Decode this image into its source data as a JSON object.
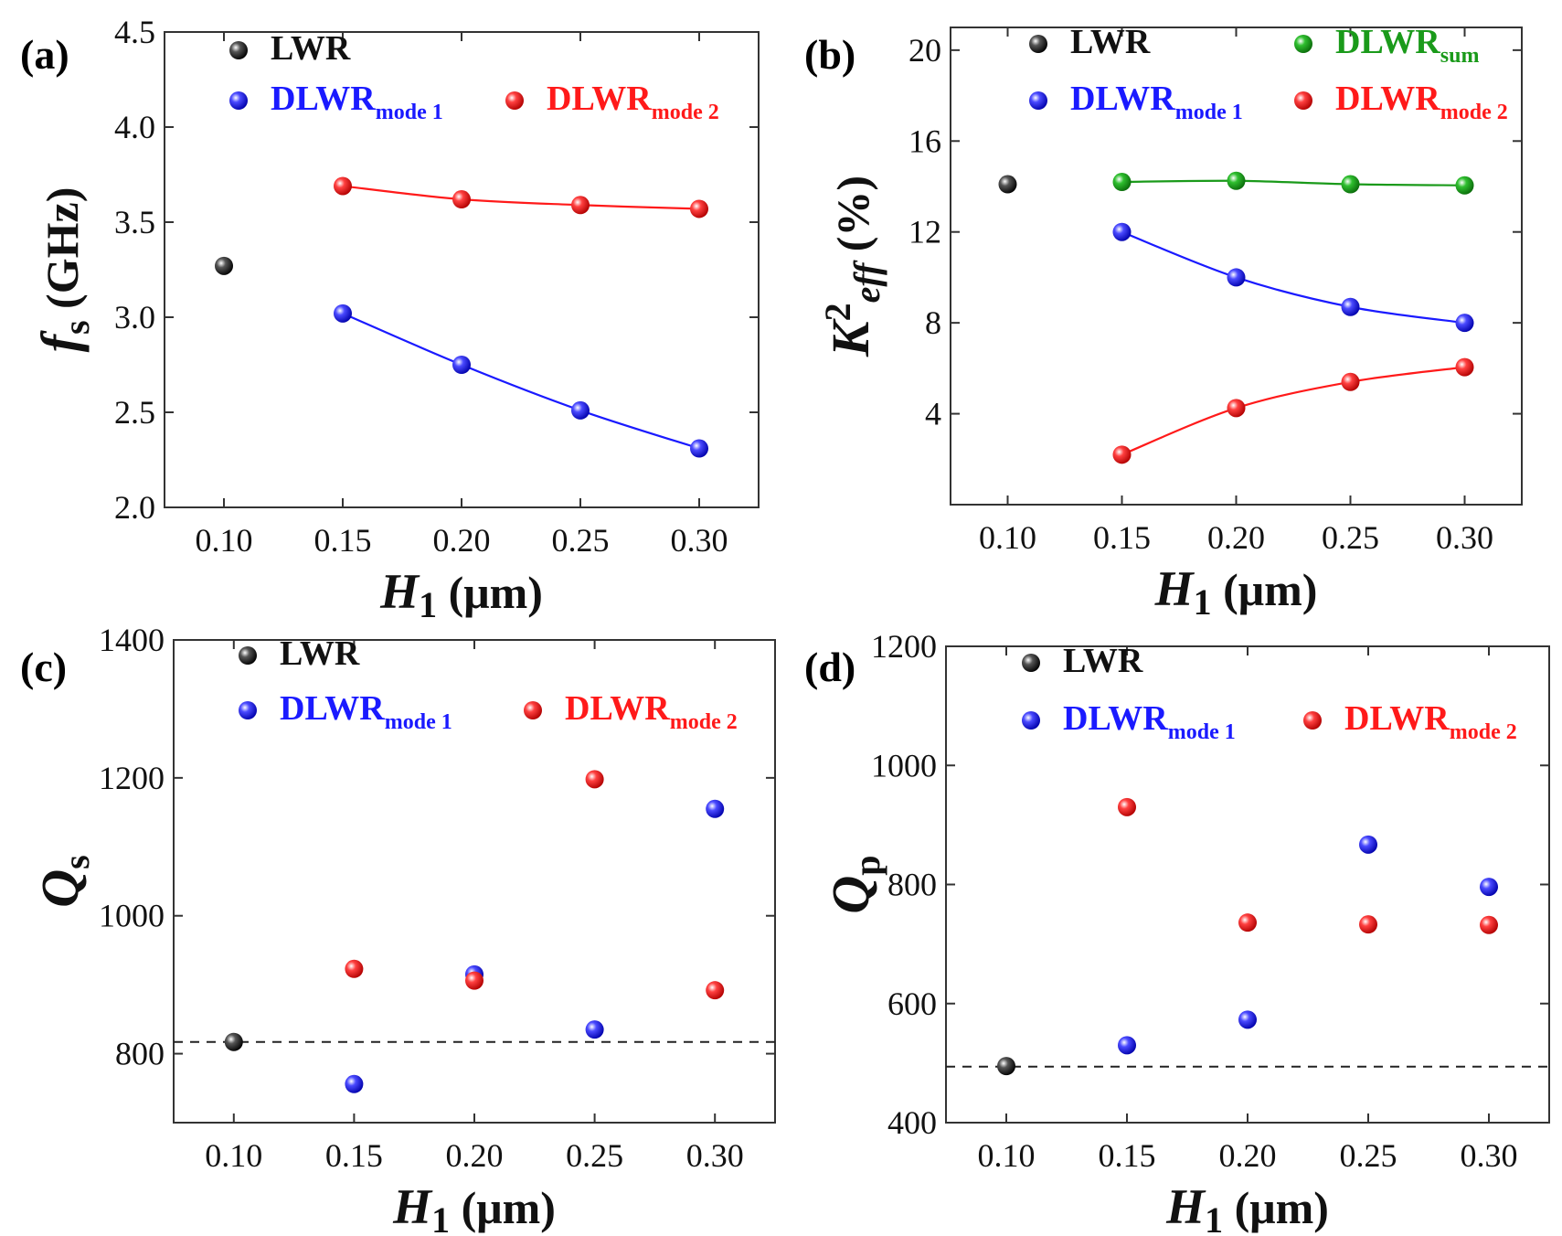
{
  "chart_data": [
    {
      "id": "a",
      "type": "scatter",
      "panel_label": "(a)",
      "xlabel": {
        "main": "H",
        "sub": "1",
        "unit": "(μm)"
      },
      "ylabel": {
        "main": "f",
        "sub": "s",
        "unit": "(GHz)"
      },
      "xlim": [
        0.075,
        0.325
      ],
      "ylim": [
        2.0,
        4.5
      ],
      "xticks": [
        "0.10",
        "0.15",
        "0.20",
        "0.25",
        "0.30"
      ],
      "yticks": [
        "2.0",
        "2.5",
        "3.0",
        "3.5",
        "4.0",
        "4.5"
      ],
      "legend": [
        {
          "series": "LWR",
          "main": "LWR",
          "sub": "",
          "color": "#111111"
        },
        {
          "series": "DLWR_mode1",
          "main": "DLWR",
          "sub": "mode 1",
          "color": "#1a1aff"
        },
        {
          "series": "DLWR_mode2",
          "main": "DLWR",
          "sub": "mode 2",
          "color": "#ff1a1a"
        }
      ],
      "series": [
        {
          "name": "LWR",
          "color": "#111111",
          "line": false,
          "x": [
            0.1
          ],
          "y": [
            3.27
          ]
        },
        {
          "name": "DLWR_mode1",
          "color": "#1a1aff",
          "line": true,
          "x": [
            0.15,
            0.2,
            0.25,
            0.3
          ],
          "y": [
            3.02,
            2.75,
            2.51,
            2.31
          ]
        },
        {
          "name": "DLWR_mode2",
          "color": "#ff1a1a",
          "line": true,
          "x": [
            0.15,
            0.2,
            0.25,
            0.3
          ],
          "y": [
            3.69,
            3.62,
            3.59,
            3.57
          ]
        }
      ]
    },
    {
      "id": "b",
      "type": "scatter",
      "panel_label": "(b)",
      "xlabel": {
        "main": "H",
        "sub": "1",
        "unit": "(μm)"
      },
      "ylabel": {
        "main": "K",
        "sup": "2",
        "sub": "eff",
        "unit": "(%)"
      },
      "xlim": [
        0.075,
        0.325
      ],
      "ylim": [
        0,
        21
      ],
      "xticks": [
        "0.10",
        "0.15",
        "0.20",
        "0.25",
        "0.30"
      ],
      "yticks": [
        "4",
        "8",
        "12",
        "16",
        "20"
      ],
      "legend": [
        {
          "series": "LWR",
          "main": "LWR",
          "sub": "",
          "color": "#111111"
        },
        {
          "series": "DLWR_sum",
          "main": "DLWR",
          "sub": "sum",
          "color": "#1a9a1a"
        },
        {
          "series": "DLWR_mode1",
          "main": "DLWR",
          "sub": "mode 1",
          "color": "#1a1aff"
        },
        {
          "series": "DLWR_mode2",
          "main": "DLWR",
          "sub": "mode 2",
          "color": "#ff1a1a"
        }
      ],
      "series": [
        {
          "name": "LWR",
          "color": "#111111",
          "line": false,
          "x": [
            0.1
          ],
          "y": [
            14.1
          ]
        },
        {
          "name": "DLWR_sum",
          "color": "#1a9a1a",
          "line": true,
          "x": [
            0.15,
            0.2,
            0.25,
            0.3
          ],
          "y": [
            14.2,
            14.25,
            14.1,
            14.05
          ]
        },
        {
          "name": "DLWR_mode1",
          "color": "#1a1aff",
          "line": true,
          "x": [
            0.15,
            0.2,
            0.25,
            0.3
          ],
          "y": [
            12.0,
            10.0,
            8.7,
            8.0
          ]
        },
        {
          "name": "DLWR_mode2",
          "color": "#ff1a1a",
          "line": true,
          "x": [
            0.15,
            0.2,
            0.25,
            0.3
          ],
          "y": [
            2.2,
            4.25,
            5.4,
            6.05
          ]
        }
      ]
    },
    {
      "id": "c",
      "type": "scatter",
      "panel_label": "(c)",
      "xlabel": {
        "main": "H",
        "sub": "1",
        "unit": "(μm)"
      },
      "ylabel": {
        "main": "Q",
        "sub": "s",
        "unit": ""
      },
      "xlim": [
        0.075,
        0.325
      ],
      "ylim": [
        700,
        1400
      ],
      "xticks": [
        "0.10",
        "0.15",
        "0.20",
        "0.25",
        "0.30"
      ],
      "yticks": [
        "800",
        "1000",
        "1200",
        "1400"
      ],
      "hline": {
        "y": 817,
        "style": "dashed"
      },
      "legend": [
        {
          "series": "LWR",
          "main": "LWR",
          "sub": "",
          "color": "#111111"
        },
        {
          "series": "DLWR_mode1",
          "main": "DLWR",
          "sub": "mode 1",
          "color": "#1a1aff"
        },
        {
          "series": "DLWR_mode2",
          "main": "DLWR",
          "sub": "mode 2",
          "color": "#ff1a1a"
        }
      ],
      "series": [
        {
          "name": "LWR",
          "color": "#111111",
          "line": false,
          "x": [
            0.1
          ],
          "y": [
            817
          ]
        },
        {
          "name": "DLWR_mode1",
          "color": "#1a1aff",
          "line": false,
          "x": [
            0.15,
            0.2,
            0.25,
            0.3
          ],
          "y": [
            756,
            915,
            835,
            1155
          ]
        },
        {
          "name": "DLWR_mode2",
          "color": "#ff1a1a",
          "line": false,
          "x": [
            0.15,
            0.2,
            0.25,
            0.3
          ],
          "y": [
            923,
            906,
            1198,
            892
          ]
        }
      ]
    },
    {
      "id": "d",
      "type": "scatter",
      "panel_label": "(d)",
      "xlabel": {
        "main": "H",
        "sub": "1",
        "unit": "(μm)"
      },
      "ylabel": {
        "main": "Q",
        "sub": "p",
        "unit": ""
      },
      "xlim": [
        0.075,
        0.325
      ],
      "ylim": [
        400,
        1200
      ],
      "xticks": [
        "0.10",
        "0.15",
        "0.20",
        "0.25",
        "0.30"
      ],
      "yticks": [
        "400",
        "600",
        "800",
        "1000",
        "1200"
      ],
      "hline": {
        "y": 494,
        "style": "dashed"
      },
      "legend": [
        {
          "series": "LWR",
          "main": "LWR",
          "sub": "",
          "color": "#111111"
        },
        {
          "series": "DLWR_mode1",
          "main": "DLWR",
          "sub": "mode 1",
          "color": "#1a1aff"
        },
        {
          "series": "DLWR_mode2",
          "main": "DLWR",
          "sub": "mode 2",
          "color": "#ff1a1a"
        }
      ],
      "series": [
        {
          "name": "LWR",
          "color": "#111111",
          "line": false,
          "x": [
            0.1
          ],
          "y": [
            495
          ]
        },
        {
          "name": "DLWR_mode1",
          "color": "#1a1aff",
          "line": false,
          "x": [
            0.15,
            0.2,
            0.25,
            0.3
          ],
          "y": [
            530,
            573,
            867,
            796
          ]
        },
        {
          "name": "DLWR_mode2",
          "color": "#ff1a1a",
          "line": false,
          "x": [
            0.15,
            0.2,
            0.25,
            0.3
          ],
          "y": [
            930,
            736,
            733,
            732
          ]
        }
      ]
    }
  ]
}
